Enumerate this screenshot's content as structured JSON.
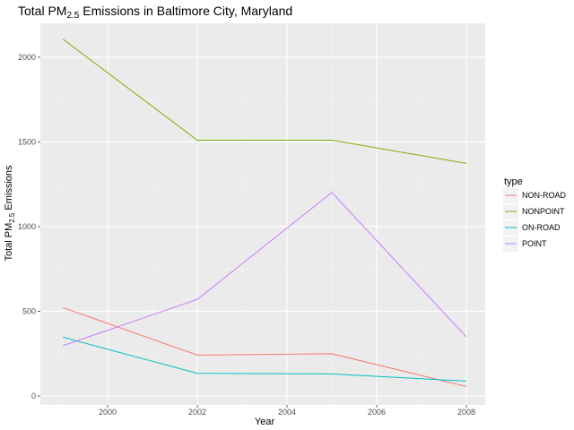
{
  "chart_data": {
    "type": "line",
    "title": {
      "prefix": "Total PM",
      "sub": "2.5",
      "suffix": " Emissions in Baltimore City, Maryland"
    },
    "xlabel": "Year",
    "ylabel": {
      "prefix": "Total PM",
      "sub": "2.5",
      "suffix": " Emissions"
    },
    "x": [
      1999,
      2002,
      2005,
      2008
    ],
    "xlim": [
      1999,
      2008
    ],
    "ylim": [
      0,
      2100
    ],
    "x_ticks": [
      2000,
      2002,
      2004,
      2006,
      2008
    ],
    "y_ticks": [
      0,
      500,
      1000,
      1500,
      2000
    ],
    "grid": true,
    "legend": {
      "title": "type",
      "placement": "right"
    },
    "series": [
      {
        "name": "NON-ROAD",
        "color": "#F8766D",
        "values": [
          522,
          241,
          249,
          56
        ]
      },
      {
        "name": "NONPOINT",
        "color": "#7CAE00",
        "values": [
          2108,
          1510,
          1510,
          1373
        ]
      },
      {
        "name": "ON-ROAD",
        "color": "#00BFC4",
        "values": [
          347,
          134,
          130,
          88
        ]
      },
      {
        "name": "POINT",
        "color": "#C77CFF",
        "values": [
          297,
          570,
          1202,
          348
        ]
      }
    ]
  }
}
